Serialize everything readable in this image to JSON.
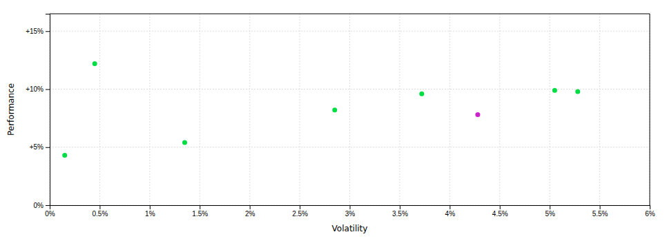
{
  "chart_data": {
    "type": "scatter",
    "x": [
      0.15,
      0.45,
      1.35,
      2.85,
      3.72,
      4.28,
      5.05,
      5.28
    ],
    "values": [
      4.3,
      12.2,
      5.4,
      8.2,
      9.6,
      7.8,
      9.9,
      9.8
    ],
    "colors": [
      "#00dd44",
      "#00dd44",
      "#00dd44",
      "#00dd44",
      "#00dd44",
      "#cc22cc",
      "#00dd44",
      "#00dd44"
    ],
    "xlabel": "Volatility",
    "ylabel": "Performance",
    "xlim": [
      0,
      6
    ],
    "ylim": [
      0,
      16.5
    ],
    "xticks": [
      {
        "value": 0,
        "label": "0%"
      },
      {
        "value": 0.5,
        "label": "0.5%"
      },
      {
        "value": 1.0,
        "label": "1%"
      },
      {
        "value": 1.5,
        "label": "1.5%"
      },
      {
        "value": 2.0,
        "label": "2%"
      },
      {
        "value": 2.5,
        "label": "2.5%"
      },
      {
        "value": 3.0,
        "label": "3%"
      },
      {
        "value": 3.5,
        "label": "3.5%"
      },
      {
        "value": 4.0,
        "label": "4%"
      },
      {
        "value": 4.5,
        "label": "4.5%"
      },
      {
        "value": 5.0,
        "label": "5%"
      },
      {
        "value": 5.5,
        "label": "5.5%"
      },
      {
        "value": 6.0,
        "label": "6%"
      }
    ],
    "yticks": [
      {
        "value": 0,
        "label": "0%"
      },
      {
        "value": 5,
        "label": "+5%"
      },
      {
        "value": 10,
        "label": "+10%"
      },
      {
        "value": 15,
        "label": "+15%"
      }
    ],
    "grid": true
  }
}
